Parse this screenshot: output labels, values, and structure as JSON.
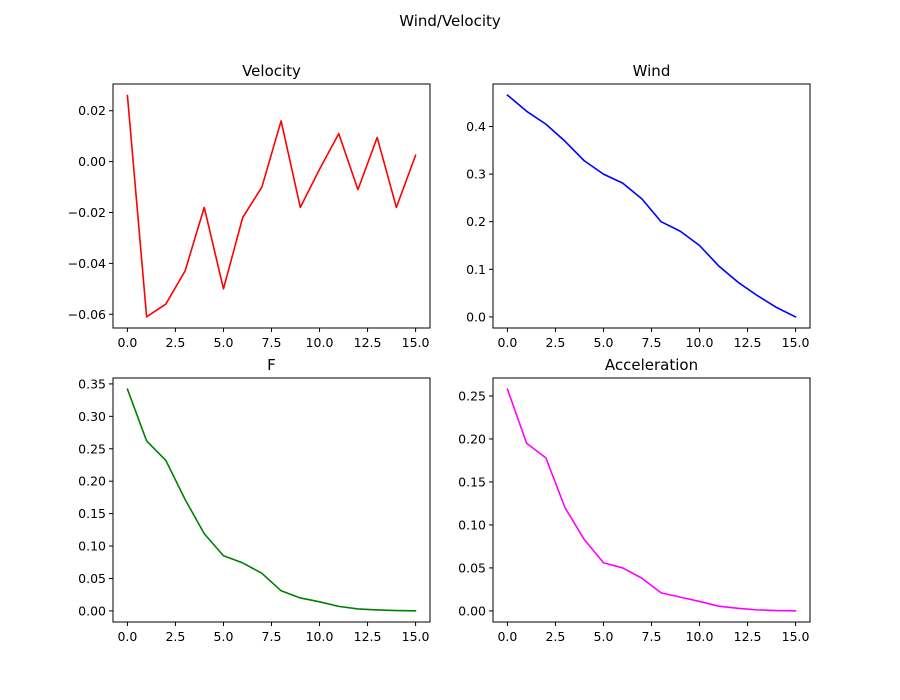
{
  "figure": {
    "title": "Wind/Velocity"
  },
  "chart_data": [
    {
      "type": "line",
      "title": "Velocity",
      "xlabel": "",
      "ylabel": "",
      "x": [
        0,
        1,
        2,
        3,
        4,
        5,
        6,
        7,
        8,
        9,
        10,
        11,
        12,
        13,
        14,
        15
      ],
      "series": [
        {
          "values": [
            0.026,
            -0.061,
            -0.056,
            -0.043,
            -0.018,
            -0.05,
            -0.022,
            -0.01,
            0.016,
            -0.018,
            -0.003,
            0.011,
            -0.011,
            0.0095,
            -0.018,
            0.0025
          ],
          "color": "#ff0000"
        }
      ],
      "xlim": [
        -0.75,
        15.75
      ],
      "ylim": [
        -0.0654,
        0.0305
      ],
      "xticks": [
        0,
        2.5,
        5,
        7.5,
        10,
        12.5,
        15
      ],
      "xtick_labels": [
        "0.0",
        "2.5",
        "5.0",
        "7.5",
        "10.0",
        "12.5",
        "15.0"
      ],
      "yticks": [
        -0.06,
        -0.04,
        -0.02,
        0.0,
        0.02
      ],
      "ytick_labels": [
        "−0.06",
        "−0.04",
        "−0.02",
        "0.00",
        "0.02"
      ],
      "grid": false
    },
    {
      "type": "line",
      "title": "Wind",
      "xlabel": "",
      "ylabel": "",
      "x": [
        0,
        1,
        2,
        3,
        4,
        5,
        6,
        7,
        8,
        9,
        10,
        11,
        12,
        13,
        14,
        15
      ],
      "series": [
        {
          "values": [
            0.466,
            0.432,
            0.405,
            0.369,
            0.328,
            0.3,
            0.281,
            0.248,
            0.2,
            0.18,
            0.15,
            0.107,
            0.073,
            0.045,
            0.02,
            0.0
          ],
          "color": "#0000ff"
        }
      ],
      "xlim": [
        -0.75,
        15.75
      ],
      "ylim": [
        -0.0233,
        0.4893
      ],
      "xticks": [
        0,
        2.5,
        5,
        7.5,
        10,
        12.5,
        15
      ],
      "xtick_labels": [
        "0.0",
        "2.5",
        "5.0",
        "7.5",
        "10.0",
        "12.5",
        "15.0"
      ],
      "yticks": [
        0.0,
        0.1,
        0.2,
        0.3,
        0.4
      ],
      "ytick_labels": [
        "0.0",
        "0.1",
        "0.2",
        "0.3",
        "0.4"
      ],
      "grid": false
    },
    {
      "type": "line",
      "title": "F",
      "xlabel": "",
      "ylabel": "",
      "x": [
        0,
        1,
        2,
        3,
        4,
        5,
        6,
        7,
        8,
        9,
        10,
        11,
        12,
        13,
        14,
        15
      ],
      "series": [
        {
          "values": [
            0.342,
            0.262,
            0.232,
            0.172,
            0.119,
            0.085,
            0.074,
            0.058,
            0.031,
            0.02,
            0.014,
            0.007,
            0.003,
            0.0015,
            0.0005,
            0.0001
          ],
          "color": "#008000"
        }
      ],
      "xlim": [
        -0.75,
        15.75
      ],
      "ylim": [
        -0.0171,
        0.3591
      ],
      "xticks": [
        0,
        2.5,
        5,
        7.5,
        10,
        12.5,
        15
      ],
      "xtick_labels": [
        "0.0",
        "2.5",
        "5.0",
        "7.5",
        "10.0",
        "12.5",
        "15.0"
      ],
      "yticks": [
        0.0,
        0.05,
        0.1,
        0.15,
        0.2,
        0.25,
        0.3,
        0.35
      ],
      "ytick_labels": [
        "0.00",
        "0.05",
        "0.10",
        "0.15",
        "0.20",
        "0.25",
        "0.30",
        "0.35"
      ],
      "grid": false
    },
    {
      "type": "line",
      "title": "Acceleration",
      "xlabel": "",
      "ylabel": "",
      "x": [
        0,
        1,
        2,
        3,
        4,
        5,
        6,
        7,
        8,
        9,
        10,
        11,
        12,
        13,
        14,
        15
      ],
      "series": [
        {
          "values": [
            0.258,
            0.195,
            0.178,
            0.12,
            0.083,
            0.056,
            0.05,
            0.038,
            0.021,
            0.016,
            0.011,
            0.0055,
            0.003,
            0.0012,
            0.0004,
            0.0001
          ],
          "color": "#ff00ff"
        }
      ],
      "xlim": [
        -0.75,
        15.75
      ],
      "ylim": [
        -0.0129,
        0.2709
      ],
      "xticks": [
        0,
        2.5,
        5,
        7.5,
        10,
        12.5,
        15
      ],
      "xtick_labels": [
        "0.0",
        "2.5",
        "5.0",
        "7.5",
        "10.0",
        "12.5",
        "15.0"
      ],
      "yticks": [
        0.0,
        0.05,
        0.1,
        0.15,
        0.2,
        0.25
      ],
      "ytick_labels": [
        "0.00",
        "0.05",
        "0.10",
        "0.15",
        "0.20",
        "0.25"
      ],
      "grid": false
    }
  ]
}
